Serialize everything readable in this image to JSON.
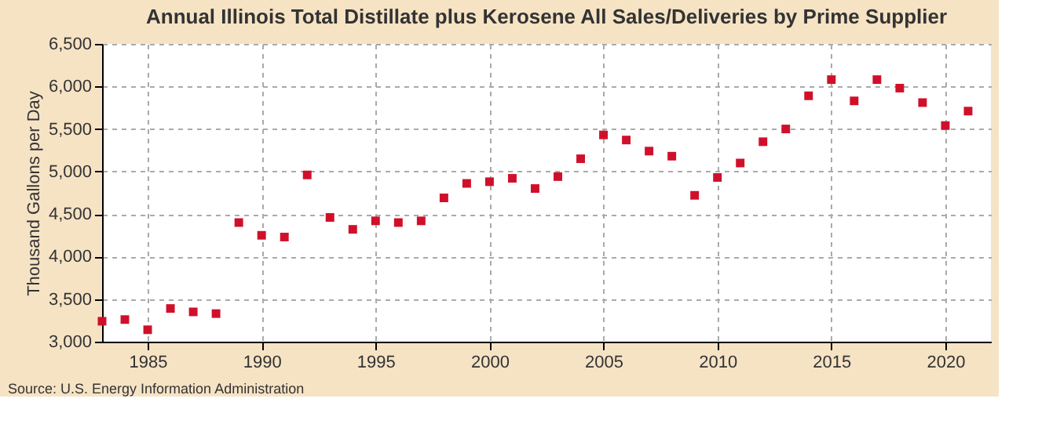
{
  "chart_data": {
    "type": "scatter",
    "title": "Annual Illinois Total Distillate plus Kerosene All Sales/Deliveries by Prime Supplier",
    "ylabel": "Thousand Gallons per Day",
    "annotations": [
      "Source: U.S. Energy Information Administration"
    ],
    "x": [
      1983,
      1984,
      1985,
      1986,
      1987,
      1988,
      1989,
      1990,
      1991,
      1992,
      1993,
      1994,
      1995,
      1996,
      1997,
      1998,
      1999,
      2000,
      2001,
      2002,
      2003,
      2004,
      2005,
      2006,
      2007,
      2008,
      2009,
      2010,
      2011,
      2012,
      2013,
      2014,
      2015,
      2016,
      2017,
      2018,
      2019,
      2020,
      2021
    ],
    "series": [
      {
        "color": "#d0102a",
        "values": [
          3240,
          3260,
          3140,
          3390,
          3350,
          3330,
          4400,
          4250,
          4230,
          4960,
          4460,
          4320,
          4420,
          4400,
          4420,
          4690,
          4860,
          4880,
          4920,
          4800,
          4940,
          5150,
          5430,
          5370,
          5240,
          5180,
          4720,
          4930,
          5100,
          5350,
          5500,
          5890,
          6080,
          5830,
          6080,
          5980,
          5810,
          5540,
          5710
        ]
      }
    ],
    "xlim": [
      1983,
      2022
    ],
    "xticks": [
      1985,
      1990,
      1995,
      2000,
      2005,
      2010,
      2015,
      2020
    ],
    "ylim": [
      3000,
      6500
    ],
    "yticks": [
      {
        "value": 3000,
        "label": "3,000"
      },
      {
        "value": 3500,
        "label": "3,500"
      },
      {
        "value": 4000,
        "label": "4,000"
      },
      {
        "value": 4500,
        "label": "4,500"
      },
      {
        "value": 5000,
        "label": "5,000"
      },
      {
        "value": 5500,
        "label": "5,500"
      },
      {
        "value": 6000,
        "label": "6,000"
      },
      {
        "value": 6500,
        "label": "6,500"
      }
    ],
    "grid": true,
    "marker": "square",
    "legend": false
  }
}
